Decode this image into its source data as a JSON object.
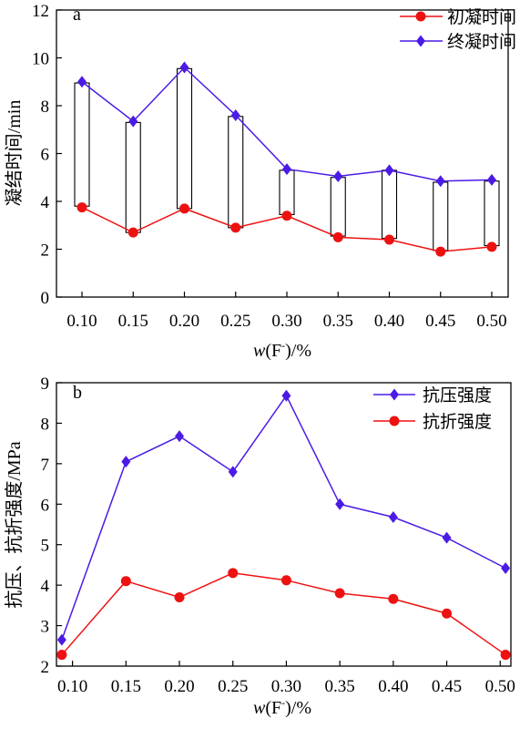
{
  "chart_data": [
    {
      "panel": "a",
      "type": "line",
      "categories": [
        "0.10",
        "0.15",
        "0.20",
        "0.25",
        "0.30",
        "0.35",
        "0.40",
        "0.45",
        "0.50"
      ],
      "series": [
        {
          "name": "初凝时间",
          "color": "#ee1111",
          "marker": "circle",
          "values": [
            3.75,
            2.7,
            3.7,
            2.9,
            3.4,
            2.5,
            2.4,
            1.9,
            2.1
          ]
        },
        {
          "name": "终凝时间",
          "color": "#4b1be6",
          "marker": "diamond",
          "values": [
            9.0,
            7.35,
            9.6,
            7.6,
            5.35,
            5.05,
            5.3,
            4.85,
            4.9
          ]
        }
      ],
      "boxes": [
        {
          "low": 3.8,
          "high": 8.95
        },
        {
          "low": 2.7,
          "high": 7.3
        },
        {
          "low": 3.7,
          "high": 9.55
        },
        {
          "low": 2.9,
          "high": 7.55
        },
        {
          "low": 3.45,
          "high": 5.3
        },
        {
          "low": 2.55,
          "high": 5.0
        },
        {
          "low": 2.45,
          "high": 5.3
        },
        {
          "low": 1.95,
          "high": 4.8
        },
        {
          "low": 2.15,
          "high": 4.85
        }
      ],
      "ylabel": "凝结时间/min",
      "xlabel_parts": {
        "italic": "w",
        "open": "(F",
        "sup": "-",
        "close": ")/%"
      },
      "yticks": [
        "0",
        "2",
        "4",
        "6",
        "8",
        "10",
        "12"
      ],
      "ylim": [
        0,
        12
      ],
      "legend_position": "top-right",
      "grid": false
    },
    {
      "panel": "b",
      "type": "line",
      "categories": [
        "0.10",
        "0.15",
        "0.20",
        "0.25",
        "0.30",
        "0.35",
        "0.40",
        "0.45",
        "0.50"
      ],
      "x": [
        0.09,
        0.15,
        0.2,
        0.25,
        0.3,
        0.35,
        0.4,
        0.45,
        0.505
      ],
      "series": [
        {
          "name": "抗压强度",
          "color": "#4b1be6",
          "marker": "diamond",
          "values": [
            2.65,
            7.05,
            7.68,
            6.8,
            8.68,
            6.0,
            5.68,
            5.17,
            4.42
          ]
        },
        {
          "name": "抗折强度",
          "color": "#ee1111",
          "marker": "circle",
          "values": [
            2.28,
            4.1,
            3.7,
            4.3,
            4.12,
            3.8,
            3.66,
            3.3,
            2.28
          ]
        }
      ],
      "ylabel": "抗压、抗折强度/MPa",
      "xlabel_parts": {
        "italic": "w",
        "open": "(F",
        "sup": "-",
        "close": ")/%"
      },
      "yticks": [
        "2",
        "3",
        "4",
        "5",
        "6",
        "7",
        "8",
        "9"
      ],
      "ylim": [
        2,
        9
      ],
      "xlim": [
        0.085,
        0.51
      ],
      "legend_position": "top-right",
      "grid": false
    }
  ]
}
